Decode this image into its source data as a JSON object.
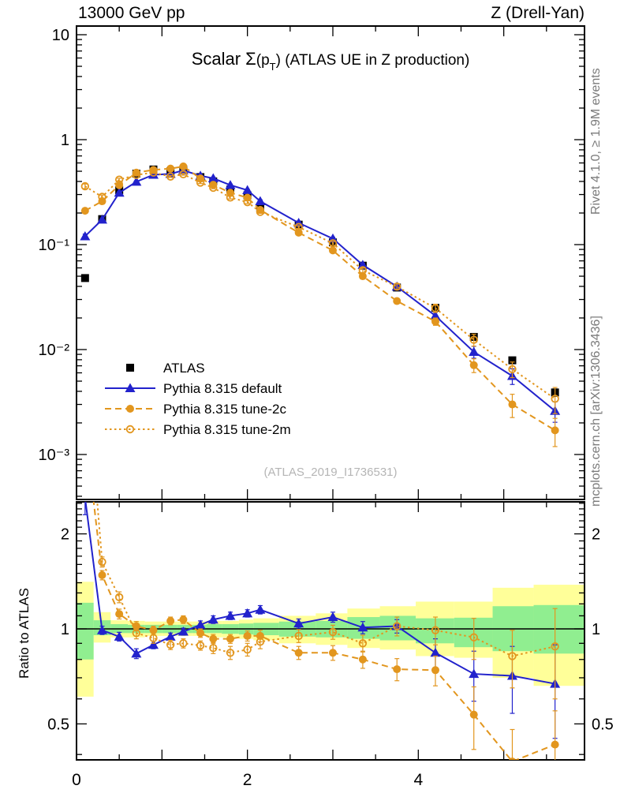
{
  "header": {
    "left": "13000 GeV pp",
    "right": "Z (Drell-Yan)"
  },
  "title": {
    "scalar": "Scalar Σ",
    "paren": "(p",
    "sub": "T",
    "post": ") (ATLAS UE in Z production)"
  },
  "side_notes": {
    "top": "Rivet 4.1.0, ≥ 1.9M events",
    "bottom": "mcplots.cern.ch [arXiv:1306.3436]"
  },
  "watermark": "(ATLAS_2019_I1736531)",
  "colors": {
    "blue": "#2222cc",
    "orange": "#e2961e",
    "band_yellow": "#ffff99",
    "band_green": "#90ee90",
    "gray_text": "#7b7b7b",
    "watermark_gray": "#b5b5b5"
  },
  "chart_data": {
    "type": "line",
    "layout": "two-panel: log-y distribution (top) + ratio to data (bottom)",
    "x": [
      0.1,
      0.3,
      0.5,
      0.7,
      0.9,
      1.1,
      1.25,
      1.45,
      1.6,
      1.8,
      2.0,
      2.15,
      2.6,
      3.0,
      3.35,
      3.75,
      4.2,
      4.65,
      5.1,
      5.6
    ],
    "series": [
      {
        "name": "ATLAS",
        "marker": "filled-square",
        "color": "#000000",
        "line": "none",
        "values": [
          0.048,
          0.175,
          0.33,
          0.475,
          0.52,
          0.5,
          0.52,
          0.44,
          0.4,
          0.335,
          0.295,
          0.225,
          0.155,
          0.105,
          0.063,
          0.039,
          0.025,
          0.0132,
          0.0079,
          0.0039
        ],
        "err_rel": [
          0.04,
          0.02,
          0.02,
          0.02,
          0.02,
          0.02,
          0.02,
          0.02,
          0.02,
          0.02,
          0.02,
          0.02,
          0.02,
          0.03,
          0.03,
          0.03,
          0.04,
          0.05,
          0.06,
          0.08
        ]
      },
      {
        "name": "Pythia 8.315 default",
        "marker": "filled-triangle",
        "color": "#2222cc",
        "line": "solid",
        "values": [
          0.12,
          0.173,
          0.312,
          0.397,
          0.463,
          0.472,
          0.51,
          0.453,
          0.428,
          0.369,
          0.33,
          0.259,
          0.161,
          0.114,
          0.064,
          0.0398,
          0.021,
          0.0095,
          0.0056,
          0.0026
        ],
        "err_rel": [
          0.05,
          0.02,
          0.02,
          0.02,
          0.02,
          0.02,
          0.02,
          0.02,
          0.02,
          0.02,
          0.02,
          0.03,
          0.03,
          0.03,
          0.04,
          0.05,
          0.09,
          0.13,
          0.17,
          0.22
        ],
        "ratio": [
          2.6,
          0.99,
          0.945,
          0.835,
          0.89,
          0.945,
          0.98,
          1.03,
          1.07,
          1.1,
          1.12,
          1.15,
          1.04,
          1.09,
          1.01,
          1.02,
          0.84,
          0.72,
          0.71,
          0.67
        ],
        "ratio_err": [
          0.3,
          0.03,
          0.03,
          0.03,
          0.025,
          0.025,
          0.025,
          0.03,
          0.03,
          0.03,
          0.03,
          0.035,
          0.035,
          0.04,
          0.045,
          0.05,
          0.09,
          0.13,
          0.17,
          0.22
        ]
      },
      {
        "name": "Pythia 8.315 tune-2c",
        "marker": "filled-circle",
        "color": "#e2961e",
        "line": "dashed",
        "values": [
          0.21,
          0.259,
          0.368,
          0.485,
          0.515,
          0.53,
          0.556,
          0.427,
          0.372,
          0.312,
          0.28,
          0.214,
          0.13,
          0.088,
          0.05,
          0.029,
          0.0185,
          0.0071,
          0.003,
          0.0017
        ],
        "err_rel": [
          0.05,
          0.03,
          0.02,
          0.02,
          0.02,
          0.02,
          0.02,
          0.02,
          0.02,
          0.02,
          0.03,
          0.03,
          0.03,
          0.04,
          0.05,
          0.06,
          0.08,
          0.15,
          0.25,
          0.3
        ],
        "ratio": [
          4.35,
          1.48,
          1.115,
          1.02,
          0.99,
          1.06,
          1.07,
          0.97,
          0.93,
          0.93,
          0.95,
          0.95,
          0.84,
          0.84,
          0.8,
          0.745,
          0.74,
          0.535,
          0.38,
          0.43
        ],
        "ratio_err": [
          0.5,
          0.05,
          0.04,
          0.035,
          0.03,
          0.03,
          0.03,
          0.03,
          0.03,
          0.03,
          0.035,
          0.04,
          0.04,
          0.045,
          0.05,
          0.06,
          0.08,
          0.12,
          0.1,
          0.12
        ]
      },
      {
        "name": "Pythia 8.315 tune-2m",
        "marker": "open-circle",
        "color": "#e2961e",
        "line": "dotted",
        "values": [
          0.36,
          0.285,
          0.416,
          0.461,
          0.486,
          0.445,
          0.468,
          0.39,
          0.348,
          0.281,
          0.254,
          0.205,
          0.147,
          0.103,
          0.057,
          0.0398,
          0.0248,
          0.0124,
          0.0065,
          0.0034
        ],
        "err_rel": [
          0.05,
          0.04,
          0.03,
          0.02,
          0.02,
          0.02,
          0.02,
          0.02,
          0.02,
          0.03,
          0.03,
          0.03,
          0.03,
          0.04,
          0.05,
          0.06,
          0.09,
          0.13,
          0.17,
          0.28
        ],
        "ratio": [
          7.5,
          1.63,
          1.26,
          0.97,
          0.935,
          0.89,
          0.9,
          0.886,
          0.87,
          0.84,
          0.86,
          0.91,
          0.95,
          0.977,
          0.9,
          1.02,
          0.99,
          0.94,
          0.82,
          0.88
        ],
        "ratio_err": [
          0.8,
          0.06,
          0.05,
          0.04,
          0.035,
          0.03,
          0.03,
          0.03,
          0.035,
          0.04,
          0.04,
          0.045,
          0.045,
          0.05,
          0.055,
          0.07,
          0.1,
          0.14,
          0.17,
          0.28
        ]
      }
    ],
    "ratio_panel": {
      "ylabel": "Ratio to ATLAS",
      "band_edges": [
        0,
        0.2,
        0.4,
        0.6,
        0.8,
        1.0,
        1.18,
        1.35,
        1.52,
        1.7,
        1.9,
        2.07,
        2.37,
        2.8,
        3.17,
        3.55,
        3.97,
        4.42,
        4.87,
        5.35,
        5.945
      ],
      "band_yellow": [
        [
          0.61,
          1.41
        ],
        [
          0.905,
          1.13
        ],
        [
          0.94,
          1.065
        ],
        [
          0.94,
          1.06
        ],
        [
          0.95,
          1.055
        ],
        [
          0.95,
          1.055
        ],
        [
          0.95,
          1.055
        ],
        [
          0.95,
          1.055
        ],
        [
          0.94,
          1.06
        ],
        [
          0.94,
          1.06
        ],
        [
          0.93,
          1.07
        ],
        [
          0.92,
          1.08
        ],
        [
          0.9,
          1.1
        ],
        [
          0.89,
          1.12
        ],
        [
          0.87,
          1.16
        ],
        [
          0.86,
          1.18
        ],
        [
          0.82,
          1.22
        ],
        [
          0.81,
          1.22
        ],
        [
          0.7,
          1.35
        ],
        [
          0.66,
          1.38
        ]
      ],
      "band_green": [
        [
          0.8,
          1.21
        ],
        [
          0.955,
          1.065
        ],
        [
          0.97,
          1.035
        ],
        [
          0.97,
          1.03
        ],
        [
          0.97,
          1.03
        ],
        [
          0.97,
          1.03
        ],
        [
          0.97,
          1.03
        ],
        [
          0.97,
          1.03
        ],
        [
          0.97,
          1.035
        ],
        [
          0.965,
          1.035
        ],
        [
          0.96,
          1.04
        ],
        [
          0.955,
          1.045
        ],
        [
          0.945,
          1.055
        ],
        [
          0.94,
          1.06
        ],
        [
          0.93,
          1.09
        ],
        [
          0.92,
          1.1
        ],
        [
          0.9,
          1.08
        ],
        [
          0.875,
          1.085
        ],
        [
          0.85,
          1.18
        ],
        [
          0.835,
          1.19
        ]
      ]
    },
    "axes": {
      "x": {
        "range": [
          0,
          5.945
        ],
        "minor_step": 0.5,
        "labeled_ticks": [
          [
            0,
            "0"
          ],
          [
            2,
            "2"
          ],
          [
            4,
            "4"
          ]
        ]
      },
      "y_main": {
        "scale": "log",
        "range": [
          0.00037,
          12.1
        ],
        "labeled_ticks": [
          [
            10,
            "10"
          ],
          [
            1,
            "1"
          ],
          [
            0.1,
            "10⁻¹"
          ],
          [
            0.01,
            "10⁻²"
          ],
          [
            0.001,
            "10⁻³"
          ]
        ]
      },
      "y_ratio": {
        "scale": "log",
        "range": [
          0.385,
          2.53
        ],
        "labeled_ticks": [
          [
            2,
            "2"
          ],
          [
            1,
            "1"
          ],
          [
            0.5,
            "0.5"
          ]
        ],
        "minor_ticks": [
          0.4,
          0.6,
          0.7,
          0.8,
          0.9,
          1.1,
          1.2,
          1.3,
          1.4,
          1.5,
          1.6,
          1.7,
          1.8,
          1.9,
          2.1,
          2.2,
          2.3,
          2.4,
          2.5
        ]
      }
    },
    "legend_entries": [
      "ATLAS",
      "Pythia 8.315 default",
      "Pythia 8.315 tune-2c",
      "Pythia 8.315 tune-2m"
    ]
  }
}
